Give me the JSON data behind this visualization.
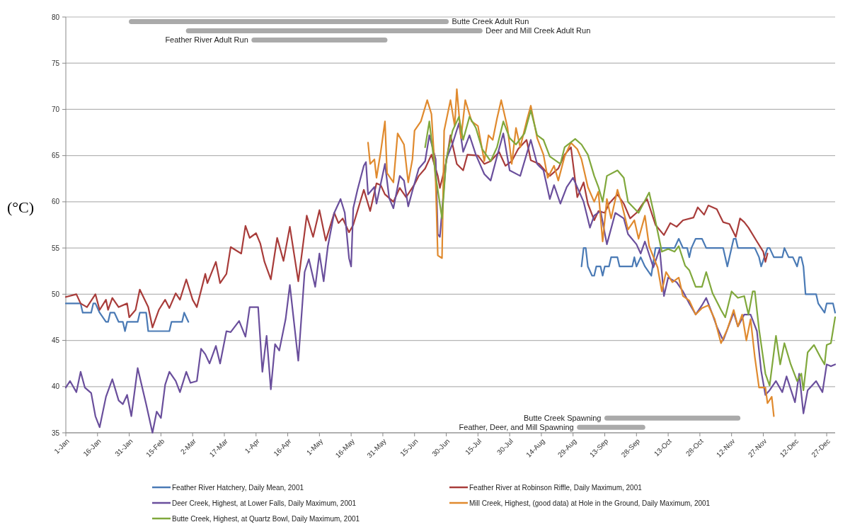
{
  "chart_data": {
    "type": "line",
    "ylabel": "(°C)",
    "ylim": [
      35,
      80
    ],
    "yticks": [
      35,
      40,
      45,
      50,
      55,
      60,
      65,
      70,
      75,
      80
    ],
    "xlim": [
      "--01-01",
      "--12-31"
    ],
    "xticks": [
      {
        "value": "--01-01",
        "label": "1-Jan"
      },
      {
        "value": "--01-16",
        "label": "16-Jan"
      },
      {
        "value": "--01-31",
        "label": "31-Jan"
      },
      {
        "value": "--02-15",
        "label": "15-Feb"
      },
      {
        "value": "--03-02",
        "label": "2-Mar"
      },
      {
        "value": "--03-17",
        "label": "17-Mar"
      },
      {
        "value": "--04-01",
        "label": "1-Apr"
      },
      {
        "value": "--04-16",
        "label": "16-Apr"
      },
      {
        "value": "--05-01",
        "label": "1-May"
      },
      {
        "value": "--05-16",
        "label": "16-May"
      },
      {
        "value": "--05-31",
        "label": "31-May"
      },
      {
        "value": "--06-15",
        "label": "15-Jun"
      },
      {
        "value": "--06-30",
        "label": "30-Jun"
      },
      {
        "value": "--07-15",
        "label": "15-Jul"
      },
      {
        "value": "--07-30",
        "label": "30-Jul"
      },
      {
        "value": "--08-14",
        "label": "14-Aug"
      },
      {
        "value": "--08-29",
        "label": "29-Aug"
      },
      {
        "value": "--09-13",
        "label": "13-Sep"
      },
      {
        "value": "--09-28",
        "label": "28-Sep"
      },
      {
        "value": "--10-13",
        "label": "13-Oct"
      },
      {
        "value": "--10-28",
        "label": "28-Oct"
      },
      {
        "value": "--11-12",
        "label": "12-Nov"
      },
      {
        "value": "--11-27",
        "label": "27-Nov"
      },
      {
        "value": "--12-12",
        "label": "12-Dec"
      },
      {
        "value": "--12-27",
        "label": "27-Dec"
      }
    ],
    "grid": "y",
    "legend": "bottom",
    "series": [
      {
        "name": "Feather River Hatchery, Daily Mean, 2001",
        "color": "#4a7ab5",
        "x": [
          "--01-01",
          "--01-08",
          "--01-09",
          "--01-13",
          "--01-14",
          "--01-15",
          "--01-17",
          "--01-20",
          "--01-21",
          "--01-22",
          "--01-24",
          "--01-26",
          "--01-28",
          "--01-29",
          "--01-30",
          "--02-04",
          "--02-05",
          "--02-08",
          "--02-09",
          "--02-19",
          "--02-20",
          "--02-25",
          "--02-26",
          "--02-28",
          "--05-31",
          "--09-02",
          "--09-03",
          "--09-04",
          "--09-05",
          "--09-07",
          "--09-08",
          "--09-09",
          "--09-11",
          "--09-12",
          "--09-13",
          "--09-15",
          "--09-16",
          "--09-19",
          "--09-20",
          "--09-26",
          "--09-27",
          "--09-28",
          "--09-30",
          "--10-02",
          "--10-05",
          "--10-07",
          "--10-16",
          "--10-18",
          "--10-20",
          "--10-22",
          "--10-23",
          "--10-24",
          "--10-26",
          "--10-29",
          "--10-31",
          "--11-08",
          "--11-10",
          "--11-12",
          "--11-13",
          "--11-14",
          "--11-15",
          "--11-23",
          "--11-25",
          "--11-26",
          "--11-29",
          "--11-30",
          "--12-02",
          "--12-06",
          "--12-07",
          "--12-09",
          "--12-11",
          "--12-13",
          "--12-14",
          "--12-15",
          "--12-16",
          "--12-17",
          "--12-22",
          "--12-23",
          "--12-26",
          "--12-27",
          "--12-30",
          "--12-31"
        ],
        "values": [
          49,
          49,
          48,
          48,
          49,
          49,
          48,
          47,
          47,
          48,
          48,
          47,
          47,
          46,
          47,
          47,
          48,
          48,
          46,
          46,
          47,
          47,
          48,
          47,
          null,
          53,
          55,
          55,
          53,
          52,
          52,
          53,
          53,
          52,
          53,
          53,
          54,
          54,
          53,
          53,
          54,
          53,
          54,
          53,
          52,
          55,
          55,
          56,
          55,
          55,
          54,
          55,
          56,
          56,
          55,
          55,
          53,
          55,
          56,
          56,
          55,
          55,
          54,
          53,
          55,
          55,
          54,
          54,
          55,
          54,
          54,
          53,
          54,
          54,
          53,
          50,
          50,
          49,
          48,
          49,
          49,
          48
        ]
      },
      {
        "name": "Feather River at Robinson Riffle, Daily Maximum, 2001",
        "color": "#a83c3a",
        "x": [
          "--01-01",
          "--01-06",
          "--01-08",
          "--01-11",
          "--01-15",
          "--01-17",
          "--01-20",
          "--01-21",
          "--01-23",
          "--01-26",
          "--01-30",
          "--01-31",
          "--02-03",
          "--02-05",
          "--02-09",
          "--02-11",
          "--02-14",
          "--02-17",
          "--02-19",
          "--02-22",
          "--02-24",
          "--02-27",
          "--03-02",
          "--03-04",
          "--03-08",
          "--03-09",
          "--03-13",
          "--03-15",
          "--03-18",
          "--03-20",
          "--03-25",
          "--03-27",
          "--03-29",
          "--04-01",
          "--04-03",
          "--04-05",
          "--04-08",
          "--04-11",
          "--04-14",
          "--04-17",
          "--04-21",
          "--04-25",
          "--04-28",
          "--05-01",
          "--05-04",
          "--05-08",
          "--05-10",
          "--05-12",
          "--05-15",
          "--05-17",
          "--05-22",
          "--05-25",
          "--05-28",
          "--05-30",
          "--06-01",
          "--06-05",
          "--06-08",
          "--06-11",
          "--06-15",
          "--06-17",
          "--06-20",
          "--06-23",
          "--06-26",
          "--06-27",
          "--06-30",
          "--07-02",
          "--07-05",
          "--07-08",
          "--07-10",
          "--07-15",
          "--07-18",
          "--07-21",
          "--07-25",
          "--07-28",
          "--07-31",
          "--08-03",
          "--08-07",
          "--08-09",
          "--08-13",
          "--08-18",
          "--08-22",
          "--08-25",
          "--08-28",
          "--08-31",
          "--09-03",
          "--09-05",
          "--09-08",
          "--09-10",
          "--09-13",
          "--09-15",
          "--09-19",
          "--09-22",
          "--09-25",
          "--09-28",
          "--10-01",
          "--10-03",
          "--10-07",
          "--10-11",
          "--10-14",
          "--10-17",
          "--10-20",
          "--10-25",
          "--10-27",
          "--10-30",
          "--11-01",
          "--11-05",
          "--11-08",
          "--11-11",
          "--11-14",
          "--11-16",
          "--11-18",
          "--11-20",
          "--11-24",
          "--11-27",
          "--11-28",
          "--11-29"
        ],
        "values": [
          49.7,
          50,
          49,
          48.6,
          50,
          48.3,
          49.4,
          48.3,
          49.6,
          48.6,
          49,
          47.5,
          48.3,
          50.5,
          48.6,
          46.4,
          48.3,
          49.4,
          48.5,
          50.1,
          49.4,
          51.6,
          49.4,
          48.6,
          52.2,
          51.2,
          53.5,
          51.2,
          52.2,
          55.1,
          54.4,
          57.4,
          56.1,
          56.6,
          55.5,
          53.5,
          51.6,
          56.1,
          53.6,
          57.3,
          51.4,
          58.5,
          56.2,
          59.1,
          55.8,
          58.8,
          57.7,
          58.2,
          56.7,
          57.5,
          61.3,
          59,
          62,
          61.8,
          60.8,
          60,
          61.5,
          60.5,
          61.9,
          62.8,
          63.6,
          65.1,
          62.8,
          61.5,
          64.3,
          67.2,
          64.1,
          63.4,
          65.1,
          65,
          64.1,
          64.4,
          65.4,
          63.9,
          64.4,
          65.7,
          66.7,
          64.5,
          64.1,
          62.8,
          63.6,
          65.1,
          65.9,
          60.5,
          62.1,
          59.8,
          58,
          59,
          58.8,
          59.8,
          60.8,
          59.8,
          58.2,
          58.8,
          59.8,
          60.3,
          57.5,
          56.4,
          57.7,
          57.3,
          58,
          58.3,
          59.4,
          58.6,
          59.6,
          59.2,
          57.8,
          57.6,
          56.2,
          58.2,
          57.8,
          57.2,
          55.7,
          54.6,
          53.5,
          54.4
        ]
      },
      {
        "name": "Deer Creek, Highest, at Lower Falls, Daily Maximum, 2001",
        "color": "#6a4f9c",
        "x": [
          "--01-01",
          "--01-03",
          "--01-06",
          "--01-08",
          "--01-10",
          "--01-13",
          "--01-15",
          "--01-17",
          "--01-20",
          "--01-23",
          "--01-26",
          "--01-28",
          "--01-30",
          "--02-01",
          "--02-04",
          "--02-08",
          "--02-11",
          "--02-13",
          "--02-15",
          "--02-17",
          "--02-19",
          "--02-22",
          "--02-24",
          "--02-27",
          "--03-01",
          "--03-04",
          "--03-06",
          "--03-08",
          "--03-10",
          "--03-13",
          "--03-15",
          "--03-18",
          "--03-20",
          "--03-24",
          "--03-27",
          "--03-29",
          "--04-02",
          "--04-04",
          "--04-06",
          "--04-08",
          "--04-10",
          "--04-12",
          "--04-15",
          "--04-17",
          "--04-21",
          "--04-24",
          "--04-26",
          "--04-29",
          "--05-01",
          "--05-03",
          "--05-05",
          "--05-08",
          "--05-10",
          "--05-11",
          "--05-13",
          "--05-15",
          "--05-16",
          "--05-17",
          "--05-19",
          "--05-22",
          "--05-23",
          "--05-24",
          "--05-27",
          "--05-28",
          "--06-01",
          "--06-03",
          "--06-05",
          "--06-08",
          "--06-10",
          "--06-12",
          "--06-14",
          "--06-17",
          "--06-20",
          "--06-22",
          "--06-25",
          "--06-26",
          "--06-27",
          "--06-30",
          "--07-03",
          "--07-06",
          "--07-08",
          "--07-11",
          "--07-14",
          "--07-18",
          "--07-21",
          "--07-24",
          "--07-27",
          "--07-30",
          "--08-04",
          "--08-09",
          "--08-12",
          "--08-15",
          "--08-18",
          "--08-20",
          "--08-23",
          "--08-26",
          "--08-29",
          "--09-03",
          "--09-06",
          "--09-08",
          "--09-11",
          "--09-14",
          "--09-18",
          "--09-22",
          "--09-24",
          "--09-28",
          "--09-30",
          "--10-02",
          "--10-06",
          "--10-09",
          "--10-11",
          "--10-13",
          "--10-17",
          "--10-20",
          "--10-23",
          "--10-26",
          "--10-29",
          "--10-31",
          "--11-03",
          "--11-05",
          "--11-08",
          "--11-13",
          "--11-15",
          "--11-18",
          "--11-21",
          "--11-24",
          "--11-26",
          "--11-28",
          "--11-30",
          "--12-03",
          "--12-06",
          "--12-08",
          "--12-12",
          "--12-14",
          "--12-16",
          "--12-18",
          "--12-22",
          "--12-25",
          "--12-27",
          "--12-29",
          "--12-31"
        ],
        "values": [
          39.9,
          40.6,
          39.4,
          41.6,
          39.9,
          39.3,
          36.8,
          35.6,
          38.9,
          40.8,
          38.5,
          38.1,
          39.1,
          36.8,
          42,
          38.1,
          35,
          37.3,
          36.6,
          40.2,
          41.6,
          40.6,
          39.4,
          41.6,
          40.4,
          40.6,
          44.1,
          43.5,
          42.5,
          44.4,
          42.5,
          46,
          45.9,
          47.1,
          45.4,
          48.6,
          48.6,
          41.6,
          45.5,
          39.7,
          44.6,
          43.9,
          47.3,
          51,
          42.8,
          52.4,
          53.8,
          50.8,
          54.4,
          51.4,
          55.2,
          58.8,
          59.8,
          60.3,
          58.8,
          53.9,
          53,
          59.3,
          61.3,
          63.9,
          64.3,
          60.8,
          61.6,
          59.8,
          64.1,
          60.4,
          59.3,
          62.8,
          62.3,
          59.5,
          61.2,
          63.6,
          64.4,
          67.2,
          64.6,
          56.5,
          56.2,
          64.6,
          66.3,
          68.5,
          65.4,
          67.2,
          65.1,
          63,
          62.3,
          64.9,
          67.4,
          63.4,
          62.8,
          66.7,
          64.1,
          63.4,
          60.3,
          61.8,
          59.8,
          61.6,
          62.6,
          60,
          57.2,
          58.5,
          59,
          55.4,
          58.8,
          58.2,
          56.5,
          55.4,
          54.4,
          55.7,
          52.9,
          54.9,
          49.8,
          51.8,
          51.3,
          50.3,
          49,
          47.8,
          48.8,
          49.6,
          47.8,
          46.5,
          45,
          48,
          46.5,
          47.8,
          47.8,
          46,
          41.7,
          39.1,
          39.6,
          40.6,
          39.4,
          41.1,
          38.3,
          41.4,
          37.1,
          39.6,
          40.6,
          39.4,
          42.4,
          42.2,
          42.4
        ]
      },
      {
        "name": "Mill Creek, Highest, (good data) at Hole in the Ground, Daily Maximum, 2001",
        "color": "#e08a2e",
        "x": [
          "--05-24",
          "--05-25",
          "--05-27",
          "--05-28",
          "--05-30",
          "--06-01",
          "--06-02",
          "--06-05",
          "--06-07",
          "--06-10",
          "--06-12",
          "--06-14",
          "--06-15",
          "--06-18",
          "--06-21",
          "--06-23",
          "--06-25",
          "--06-26",
          "--06-28",
          "--06-29",
          "--07-02",
          "--07-04",
          "--07-05",
          "--07-07",
          "--07-09",
          "--07-12",
          "--07-15",
          "--07-18",
          "--07-20",
          "--07-22",
          "--07-24",
          "--07-26",
          "--07-29",
          "--07-31",
          "--08-02",
          "--08-04",
          "--08-07",
          "--08-09",
          "--08-12",
          "--08-15",
          "--08-17",
          "--08-20",
          "--08-22",
          "--08-25",
          "--08-28",
          "--08-31",
          "--09-02",
          "--09-05",
          "--09-08",
          "--09-10",
          "--09-12",
          "--09-14",
          "--09-16",
          "--09-19",
          "--09-21",
          "--09-24",
          "--09-27",
          "--09-29",
          "--10-02",
          "--10-04",
          "--10-08",
          "--10-10",
          "--10-12",
          "--10-15",
          "--10-18",
          "--10-20",
          "--10-23",
          "--10-26",
          "--10-29",
          "--11-01",
          "--11-04",
          "--11-07",
          "--11-10",
          "--11-13",
          "--11-15",
          "--11-17",
          "--11-19",
          "--11-21",
          "--11-23",
          "--11-25",
          "--11-28",
          "--11-29",
          "--12-01",
          "--12-02"
        ],
        "values": [
          66.4,
          64.1,
          64.6,
          62.6,
          65.4,
          68.7,
          63.1,
          62.1,
          67.4,
          66.2,
          62.1,
          64.6,
          67.7,
          68.7,
          71,
          69.5,
          62.1,
          54.2,
          53.9,
          67.7,
          71,
          68.2,
          72.2,
          66.9,
          71,
          68.7,
          68.2,
          64.4,
          67.2,
          66.7,
          69,
          71,
          68,
          64.1,
          68,
          65.9,
          68.7,
          70.4,
          66.9,
          65.1,
          62.6,
          63.9,
          62.3,
          64.9,
          66.4,
          65.7,
          64.6,
          61.6,
          60,
          61.1,
          55.7,
          60.3,
          58.2,
          61.3,
          59.8,
          57,
          58,
          56,
          58.5,
          55.2,
          52.9,
          50.3,
          52.4,
          51.3,
          51.8,
          49.8,
          49.3,
          47.8,
          48.5,
          48.8,
          47.3,
          44.7,
          46.2,
          48.3,
          46.5,
          47.8,
          45,
          47.3,
          43.2,
          39.9,
          39.9,
          38.2,
          38.9,
          36.8
        ]
      },
      {
        "name": "Butte Creek, Highest, at Quartz Bowl, Daily Maximum, 2001",
        "color": "#80a83c",
        "x": [
          "--06-20",
          "--06-22",
          "--06-25",
          "--06-28",
          "--06-30",
          "--07-03",
          "--07-06",
          "--07-08",
          "--07-11",
          "--07-14",
          "--07-17",
          "--07-21",
          "--07-24",
          "--07-27",
          "--07-30",
          "--08-02",
          "--08-06",
          "--08-09",
          "--08-12",
          "--08-15",
          "--08-18",
          "--08-23",
          "--08-25",
          "--08-30",
          "--09-02",
          "--09-05",
          "--09-08",
          "--09-10",
          "--09-12",
          "--09-14",
          "--09-19",
          "--09-22",
          "--09-24",
          "--09-29",
          "--10-04",
          "--10-06",
          "--10-10",
          "--10-13",
          "--10-16",
          "--10-18",
          "--10-21",
          "--10-23",
          "--10-26",
          "--10-29",
          "--10-31",
          "--11-03",
          "--11-07",
          "--11-09",
          "--11-12",
          "--11-15",
          "--11-18",
          "--11-20",
          "--11-22",
          "--11-23",
          "--11-25",
          "--11-28",
          "--11-30",
          "--12-03",
          "--12-05",
          "--12-07",
          "--12-10",
          "--12-13",
          "--12-15",
          "--12-16",
          "--12-18",
          "--12-21",
          "--12-24",
          "--12-26",
          "--12-27",
          "--12-29",
          "--12-31"
        ],
        "values": [
          65.9,
          68.7,
          62.8,
          58.2,
          64.6,
          67.7,
          69.2,
          66.7,
          69.2,
          68,
          65.7,
          64.4,
          65.9,
          68.7,
          66.9,
          66.2,
          67.4,
          69.9,
          67.2,
          66.7,
          64.9,
          64.1,
          65.9,
          66.8,
          66.2,
          65.1,
          62.8,
          61.6,
          60,
          62.8,
          63.4,
          62.6,
          60,
          58.8,
          61,
          59,
          54.6,
          54.9,
          54.6,
          55.2,
          53.1,
          52.6,
          50.8,
          50.8,
          52.4,
          50.1,
          48.3,
          47.5,
          50.3,
          49.6,
          49.8,
          47.8,
          50.3,
          50.3,
          46.2,
          41.4,
          40.1,
          45.5,
          42.4,
          44.7,
          42.4,
          40.6,
          41.4,
          39.6,
          43.7,
          44.5,
          43.2,
          42.4,
          44.5,
          44.7,
          47.5
        ]
      },
      {
        "name": "Butte Creek Adult Run",
        "color": "#aaaaaa",
        "x": [
          "--02-01",
          "--06-30"
        ],
        "values": [
          79.5,
          79.5
        ]
      },
      {
        "name": "Deer and Mill Creek Adult Run",
        "color": "#aaaaaa",
        "x": [
          "--02-28",
          "--07-16"
        ],
        "values": [
          78.5,
          78.5
        ]
      },
      {
        "name": "Feather River Adult Run",
        "color": "#aaaaaa",
        "x": [
          "--03-31",
          "--06-01"
        ],
        "values": [
          77.5,
          77.5
        ]
      },
      {
        "name": "Butte Creek Spawning",
        "color": "#aaaaaa",
        "x": [
          "--09-14",
          "--11-15"
        ],
        "values": [
          36.6,
          36.6
        ]
      },
      {
        "name": "Feather, Deer, and Mill Spawning",
        "color": "#aaaaaa",
        "x": [
          "--09-01",
          "--10-01"
        ],
        "values": [
          35.6,
          35.6
        ]
      }
    ]
  }
}
